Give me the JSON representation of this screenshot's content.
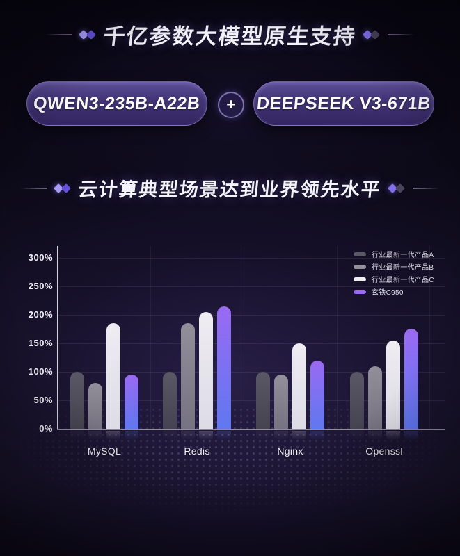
{
  "theme": {
    "background": "#0c0918",
    "accent_purple": "#8577f2",
    "title_color": "#f4f3fa"
  },
  "section1": {
    "title": "千亿参数大模型原生支持"
  },
  "models": {
    "left_label": "QWEN3-235B-A22B",
    "plus": "+",
    "right_label": "DEEPSEEK V3-671B"
  },
  "section2": {
    "title": "云计算典型场景达到业界领先水平"
  },
  "chart_data": {
    "type": "bar",
    "title": "云计算典型场景达到业界领先水平",
    "categories": [
      "MySQL",
      "Redis",
      "Nginx",
      "Openssl"
    ],
    "series": [
      {
        "name": "行业最新一代产品A",
        "color": "#5a5864",
        "color2": "#45434f",
        "values": [
          100,
          100,
          100,
          100
        ]
      },
      {
        "name": "行业最新一代产品B",
        "color": "#928f9a",
        "color2": "#767380",
        "values": [
          80,
          185,
          95,
          110
        ]
      },
      {
        "name": "行业最新一代产品C",
        "color": "#efedf2",
        "color2": "#dddbe4",
        "values": [
          185,
          205,
          150,
          155
        ]
      },
      {
        "name": "玄铁C950",
        "color": "#9a6af2",
        "color2": "#5f78f0",
        "values": [
          95,
          215,
          120,
          175
        ]
      }
    ],
    "unit": "%",
    "y_ticks": [
      "0%",
      "50%",
      "100%",
      "150%",
      "200%",
      "250%",
      "300%"
    ],
    "ylim": [
      0,
      300
    ],
    "grid": true,
    "legend_position": "top-right",
    "xlabel": "",
    "ylabel": ""
  }
}
